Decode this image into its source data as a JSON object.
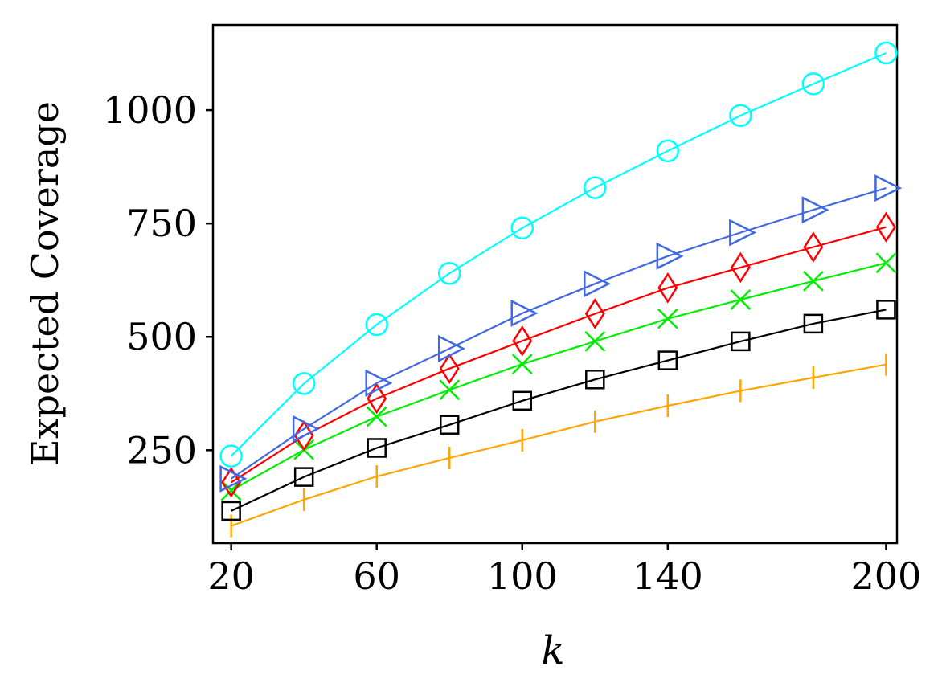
{
  "chart_data": {
    "type": "line",
    "title": "",
    "xlabel": "k",
    "ylabel": "Expected Coverage",
    "xlim": [
      15,
      203
    ],
    "ylim": [
      45,
      1188
    ],
    "xticks": [
      20,
      60,
      100,
      140,
      200
    ],
    "yticks": [
      250,
      500,
      750,
      1000
    ],
    "x_tick_labels": [
      "20",
      "60",
      "100",
      "140",
      "200"
    ],
    "y_tick_labels": [
      "250",
      "500",
      "750",
      "1000"
    ],
    "grid": false,
    "legend": "none",
    "series": [
      {
        "name": "cyan-circle",
        "color": "#00FFFF",
        "marker": "circle",
        "x": [
          20,
          40,
          60,
          80,
          100,
          120,
          140,
          160,
          180,
          200
        ],
        "y": [
          237,
          397,
          527,
          640,
          740,
          829,
          910,
          988,
          1058,
          1126
        ]
      },
      {
        "name": "blue-triangle",
        "color": "#4169E1",
        "marker": "triangle-right",
        "x": [
          20,
          40,
          60,
          80,
          100,
          120,
          140,
          160,
          180,
          200
        ],
        "y": [
          187,
          297,
          398,
          474,
          552,
          617,
          678,
          730,
          780,
          828
        ]
      },
      {
        "name": "red-diamond",
        "color": "#FF0000",
        "marker": "diamond",
        "x": [
          20,
          40,
          60,
          80,
          100,
          120,
          140,
          160,
          180,
          200
        ],
        "y": [
          179,
          282,
          364,
          430,
          491,
          551,
          608,
          653,
          698,
          742
        ]
      },
      {
        "name": "green-x",
        "color": "#00EE00",
        "marker": "x",
        "x": [
          20,
          40,
          60,
          80,
          100,
          120,
          140,
          160,
          180,
          200
        ],
        "y": [
          161,
          251,
          324,
          383,
          440,
          490,
          540,
          582,
          623,
          663
        ]
      },
      {
        "name": "black-square",
        "color": "#000000",
        "marker": "square",
        "x": [
          20,
          40,
          60,
          80,
          100,
          120,
          140,
          160,
          180,
          200
        ],
        "y": [
          116,
          191,
          255,
          306,
          359,
          406,
          448,
          490,
          529,
          560
        ]
      },
      {
        "name": "orange-vline",
        "color": "#FFA500",
        "marker": "vline",
        "x": [
          20,
          40,
          60,
          80,
          100,
          120,
          140,
          160,
          180,
          200
        ],
        "y": [
          83,
          141,
          192,
          233,
          272,
          313,
          348,
          381,
          410,
          439
        ]
      }
    ]
  }
}
